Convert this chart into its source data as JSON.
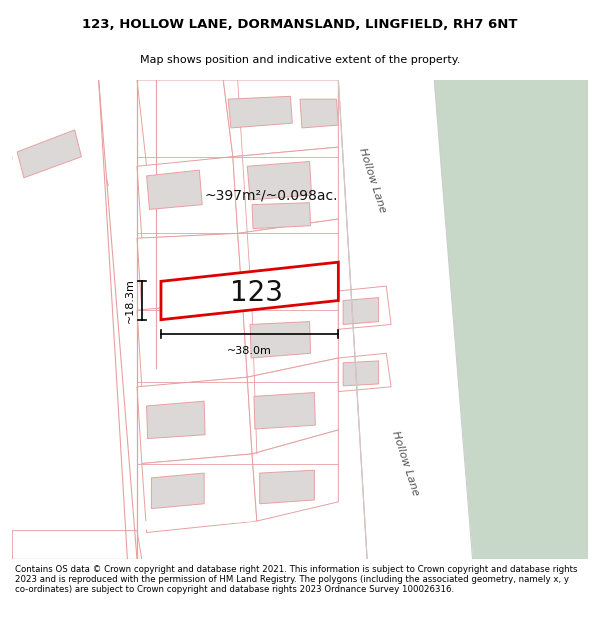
{
  "title": "123, HOLLOW LANE, DORMANSLAND, LINGFIELD, RH7 6NT",
  "subtitle": "Map shows position and indicative extent of the property.",
  "footer": "Contains OS data © Crown copyright and database right 2021. This information is subject to Crown copyright and database rights 2023 and is reproduced with the permission of HM Land Registry. The polygons (including the associated geometry, namely x, y co-ordinates) are subject to Crown copyright and database rights 2023 Ordnance Survey 100026316.",
  "label_123": "123",
  "area_label": "~397m²/~0.098ac.",
  "dim_width": "~38.0m",
  "dim_height": "~18.3m",
  "road_label_1": "Hollow Lane",
  "road_label_2": "Hollow Lane",
  "map_bg": "#f5eeee",
  "white_bg": "#ffffff",
  "green_color": "#c8d8c8",
  "building_fill": "#ddd8d8",
  "building_edge": "#e8a0a0",
  "lot_edge": "#e8a0a0",
  "lot_fill": "#ffffff",
  "road_edge": "#cccccc",
  "prop_edge": "#dd0000",
  "prop_fill": "#ffffff",
  "figsize": [
    6.0,
    6.25
  ],
  "dpi": 100,
  "title_fontsize": 9.5,
  "subtitle_fontsize": 8.0,
  "footer_fontsize": 6.2,
  "area_fontsize": 10,
  "num_fontsize": 20,
  "road_fontsize": 8,
  "dim_fontsize": 8
}
